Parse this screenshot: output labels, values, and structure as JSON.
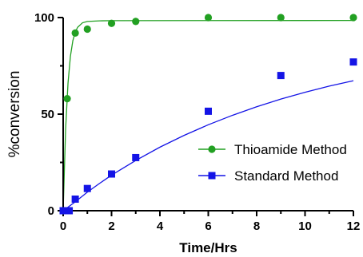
{
  "chart_data": {
    "type": "scatter",
    "title": "",
    "xlabel": "Time/Hrs",
    "ylabel": "%conversion",
    "xlim": [
      0,
      12
    ],
    "ylim": [
      0,
      100
    ],
    "x_ticks": [
      0,
      2,
      4,
      6,
      8,
      10,
      12
    ],
    "y_ticks": [
      0,
      50,
      100
    ],
    "grid": false,
    "legend_position": "right",
    "series": [
      {
        "name": "Thioamide Method",
        "marker": "circle",
        "color": "#22a022",
        "x": [
          0,
          0.167,
          0.5,
          1,
          2,
          3,
          6,
          9,
          12
        ],
        "y": [
          0,
          58,
          92,
          94,
          97,
          98,
          100,
          100,
          100
        ],
        "fit": [
          [
            0,
            0
          ],
          [
            0.1,
            42
          ],
          [
            0.2,
            66
          ],
          [
            0.3,
            80
          ],
          [
            0.4,
            88
          ],
          [
            0.5,
            92.5
          ],
          [
            0.6,
            95
          ],
          [
            0.8,
            97.3
          ],
          [
            1,
            98
          ],
          [
            1.5,
            98.3
          ],
          [
            2,
            98.4
          ],
          [
            12,
            98.5
          ]
        ]
      },
      {
        "name": "Standard Method",
        "marker": "square",
        "color": "#1414e6",
        "x": [
          0,
          0.25,
          0.5,
          1,
          2,
          3,
          6,
          9,
          12
        ],
        "y": [
          0,
          0,
          6,
          11.5,
          19,
          27.5,
          51.5,
          70,
          77
        ],
        "fit": [
          [
            0,
            0
          ],
          [
            0.5,
            4.6
          ],
          [
            1,
            9.6
          ],
          [
            1.5,
            14.1
          ],
          [
            2,
            18.4
          ],
          [
            3,
            26
          ],
          [
            4,
            32.9
          ],
          [
            5,
            39
          ],
          [
            6,
            44.5
          ],
          [
            7,
            49.4
          ],
          [
            8,
            53.8
          ],
          [
            9,
            57.8
          ],
          [
            10,
            61.3
          ],
          [
            11,
            64.5
          ],
          [
            12,
            67.3
          ]
        ]
      }
    ]
  }
}
